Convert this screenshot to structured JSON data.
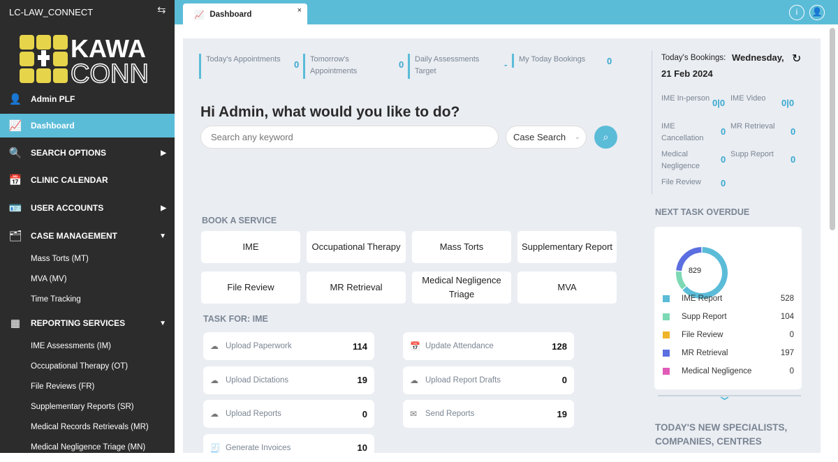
{
  "sidebar": {
    "org": "LC-LAW_CONNECT",
    "logo_text": "KAWA CONN",
    "user": "Admin PLF",
    "items": [
      {
        "label": "Dashboard"
      },
      {
        "label": "SEARCH OPTIONS"
      },
      {
        "label": "CLINIC CALENDAR"
      },
      {
        "label": "USER ACCOUNTS"
      },
      {
        "label": "CASE MANAGEMENT"
      },
      {
        "label": "REPORTING SERVICES"
      }
    ],
    "case_sub": [
      "Mass Torts (MT)",
      "MVA (MV)",
      "Time Tracking"
    ],
    "reporting_sub": [
      "IME Assessments (IM)",
      "Occupational Therapy (OT)",
      "File Reviews (FR)",
      "Supplementary Reports (SR)",
      "Medical Records Retrievals (MR)",
      "Medical Negligence Triage (MN)"
    ]
  },
  "tab": {
    "label": "Dashboard",
    "close": "×"
  },
  "stats": [
    {
      "label": "Today's Appointments",
      "value": "0"
    },
    {
      "label": "Tomorrow's Appointments",
      "value": "0"
    },
    {
      "label": "Daily Assessments Target",
      "value": "-"
    },
    {
      "label": "My Today Bookings",
      "value": "0"
    }
  ],
  "greeting": "Hi Admin, what would you like to do?",
  "search": {
    "placeholder": "Search any keyword",
    "select": "Case Search"
  },
  "book": {
    "title": "BOOK A SERVICE",
    "services": [
      "IME",
      "Occupational Therapy",
      "Mass Torts",
      "Supplementary Report",
      "File Review",
      "MR Retrieval",
      "Medical Negligence Triage",
      "MVA"
    ]
  },
  "tasks": {
    "title": "TASK FOR: IME",
    "items": [
      {
        "label": "Upload Paperwork",
        "count": "114",
        "icon": "cloud-upload"
      },
      {
        "label": "Update Attendance",
        "count": "128",
        "icon": "calendar"
      },
      {
        "label": "Upload Dictations",
        "count": "19",
        "icon": "cloud-upload"
      },
      {
        "label": "Upload Report Drafts",
        "count": "0",
        "icon": "cloud-upload"
      },
      {
        "label": "Upload Reports",
        "count": "0",
        "icon": "cloud-upload"
      },
      {
        "label": "Send Reports",
        "count": "19",
        "icon": "envelope"
      },
      {
        "label": "Generate Invoices",
        "count": "10",
        "icon": "receipt"
      }
    ]
  },
  "bookings": {
    "label": "Today's Bookings:",
    "date1": "Wednesday,",
    "date2": "21 Feb 2024",
    "items": [
      {
        "label": "IME In-person",
        "value": "0|0"
      },
      {
        "label": "IME Video",
        "value": "0|0"
      },
      {
        "label": "IME Cancellation",
        "value": "0"
      },
      {
        "label": "MR Retrieval",
        "value": "0"
      },
      {
        "label": "Medical Negligence",
        "value": "0"
      },
      {
        "label": "Supp Report",
        "value": "0"
      },
      {
        "label": "File Review",
        "value": "0"
      }
    ]
  },
  "overdue": {
    "title": "NEXT TASK OVERDUE",
    "total": "829",
    "legend": [
      {
        "label": "IME Report",
        "value": 528,
        "color": "#5bbcd8"
      },
      {
        "label": "Supp Report",
        "value": 104,
        "color": "#7dd9b4"
      },
      {
        "label": "File Review",
        "value": 0,
        "color": "#f0b429"
      },
      {
        "label": "MR Retrieval",
        "value": 197,
        "color": "#5b6fe0"
      },
      {
        "label": "Medical Negligence",
        "value": 0,
        "color": "#e05bb8"
      }
    ]
  },
  "new_title": "TODAY'S NEW SPECIALISTS, COMPANIES, CENTRES"
}
